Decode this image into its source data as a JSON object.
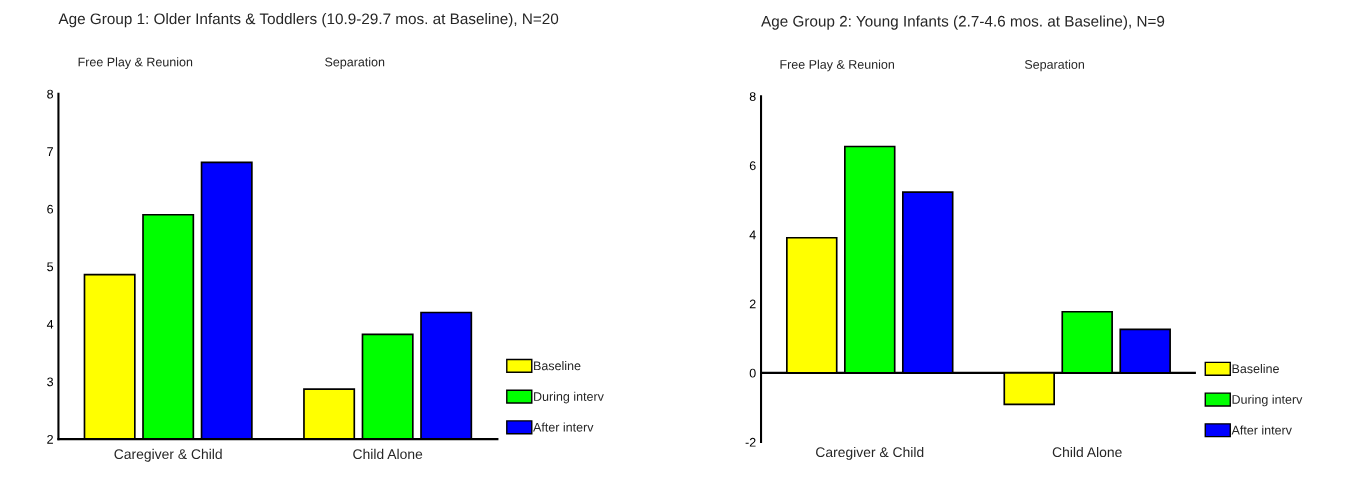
{
  "chart_data": [
    {
      "type": "bar",
      "title": "Age Group 1: Older Infants & Toddlers (10.9-29.7 mos. at Baseline), N=20",
      "categories": [
        "Caregiver & Child",
        "Child Alone"
      ],
      "series": [
        {
          "name": "Baseline",
          "color": "#ffff00",
          "values": [
            4.86,
            2.87
          ]
        },
        {
          "name": "During interv",
          "color": "#00ff00",
          "values": [
            5.9,
            3.82
          ]
        },
        {
          "name": "After interv",
          "color": "#0000ff",
          "values": [
            6.81,
            4.2
          ]
        }
      ],
      "ylim": [
        2,
        8
      ],
      "yticks": [
        2,
        3,
        4,
        5,
        6,
        7,
        8
      ],
      "legend": "bottom right",
      "grid": false,
      "annotations": [
        "Free Play & Reunion",
        "Separation"
      ]
    },
    {
      "type": "bar",
      "title": "Age Group 2: Young Infants (2.7-4.6 mos. at Baseline), N=9",
      "categories": [
        "Caregiver & Child",
        "Child Alone"
      ],
      "series": [
        {
          "name": "Baseline",
          "color": "#ffff00",
          "values": [
            3.91,
            -0.91
          ]
        },
        {
          "name": "During interv",
          "color": "#00ff00",
          "values": [
            6.55,
            1.77
          ]
        },
        {
          "name": "After interv",
          "color": "#0000ff",
          "values": [
            5.23,
            1.26
          ]
        }
      ],
      "ylim": [
        -2,
        8
      ],
      "yticks": [
        -2,
        0,
        2,
        4,
        6,
        8
      ],
      "ref_lines": [
        {
          "axis": "y",
          "value": 0,
          "color": "#000000",
          "line_style": "solid"
        }
      ],
      "legend": "bottom right",
      "grid": false,
      "annotations": [
        "Free Play & Reunion",
        "Separation"
      ]
    }
  ]
}
